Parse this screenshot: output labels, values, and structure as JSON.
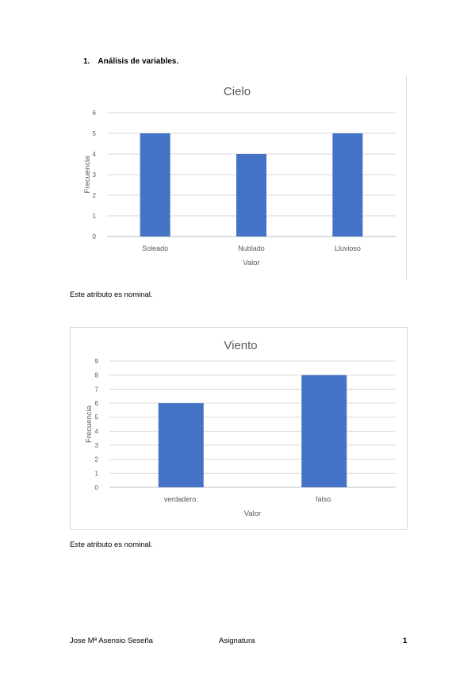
{
  "section": {
    "number": "1.",
    "title": "Análisis de variables."
  },
  "charts": [
    {
      "note": "Este atributo es nominal."
    },
    {
      "note": "Este atributo es nominal."
    }
  ],
  "chart_data": [
    {
      "type": "bar",
      "title": "Cielo",
      "xlabel": "Valor",
      "ylabel": "Frecuencia",
      "categories": [
        "Soleado",
        "Nublado",
        "Lluvioso"
      ],
      "values": [
        5,
        4,
        5
      ],
      "ylim": [
        0,
        6
      ],
      "yticks": [
        0,
        1,
        2,
        3,
        4,
        5,
        6
      ],
      "grid": true,
      "color": "#4472c4"
    },
    {
      "type": "bar",
      "title": "Viento",
      "xlabel": "Valor",
      "ylabel": "Frecuencia",
      "categories": [
        "verdadero.",
        "falso."
      ],
      "values": [
        6,
        8
      ],
      "ylim": [
        0,
        9
      ],
      "yticks": [
        0,
        1,
        2,
        3,
        4,
        5,
        6,
        7,
        8,
        9
      ],
      "grid": true,
      "color": "#4472c4"
    }
  ],
  "footer": {
    "author": "Jose Mª Asensio Seseña",
    "subject": "Asignatura",
    "page": "1"
  }
}
